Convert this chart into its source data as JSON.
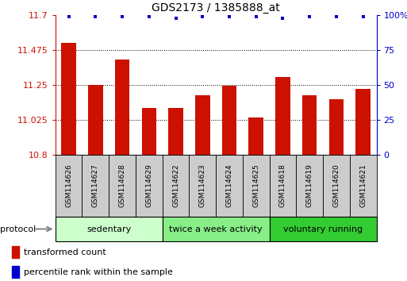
{
  "title": "GDS2173 / 1385888_at",
  "samples": [
    "GSM114626",
    "GSM114627",
    "GSM114628",
    "GSM114629",
    "GSM114622",
    "GSM114623",
    "GSM114624",
    "GSM114625",
    "GSM114618",
    "GSM114619",
    "GSM114620",
    "GSM114621"
  ],
  "bar_values": [
    11.525,
    11.25,
    11.415,
    11.1,
    11.1,
    11.185,
    11.245,
    11.04,
    11.3,
    11.185,
    11.16,
    11.225
  ],
  "percentile_values": [
    99,
    99,
    99,
    99,
    98,
    99,
    99,
    99,
    98,
    99,
    99,
    99
  ],
  "bar_color": "#cc1100",
  "dot_color": "#0000cc",
  "ylim_left": [
    10.8,
    11.7
  ],
  "ylim_right": [
    0,
    100
  ],
  "yticks_left": [
    10.8,
    11.025,
    11.25,
    11.475,
    11.7
  ],
  "yticks_right": [
    0,
    25,
    50,
    75,
    100
  ],
  "ytick_labels_left": [
    "10.8",
    "11.025",
    "11.25",
    "11.475",
    "11.7"
  ],
  "ytick_labels_right": [
    "0",
    "25",
    "50",
    "75",
    "100%"
  ],
  "groups": [
    {
      "label": "sedentary",
      "start": 0,
      "end": 4,
      "color": "#ccffcc"
    },
    {
      "label": "twice a week activity",
      "start": 4,
      "end": 8,
      "color": "#88ee88"
    },
    {
      "label": "voluntary running",
      "start": 8,
      "end": 12,
      "color": "#33cc33"
    }
  ],
  "legend_red_label": "transformed count",
  "legend_blue_label": "percentile rank within the sample",
  "protocol_label": "protocol",
  "bar_width": 0.55,
  "background_color": "#ffffff",
  "plot_bg_color": "#ffffff",
  "grid_color": "#000000",
  "left_axis_color": "#cc1100",
  "right_axis_color": "#0000cc",
  "sample_box_color": "#cccccc"
}
